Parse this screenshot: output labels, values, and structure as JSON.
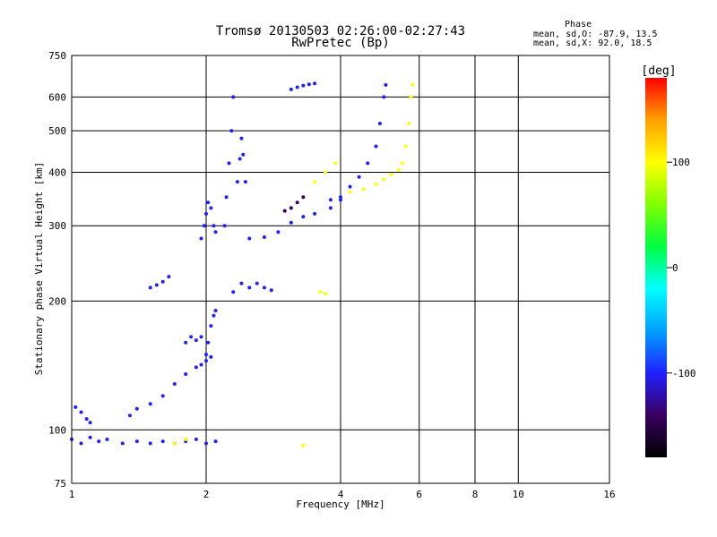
{
  "header": {
    "title_line1": "Tromsø 20130503 02:26:00-02:27:43",
    "title_line2": "RwPretec (Bp)"
  },
  "phase_box": {
    "title": "Phase",
    "o_stats": "mean, sd,O: -87.9, 13.5",
    "x_stats": "mean, sd,X:  92.0, 18.5"
  },
  "chart_data": {
    "type": "scatter",
    "xlabel": "Frequency [MHz]",
    "ylabel": "Stationary phase Virtual Height [km]",
    "x_scale": "log",
    "y_scale": "log",
    "xlim": [
      1,
      16
    ],
    "ylim": [
      75,
      750
    ],
    "x_ticks": [
      1,
      2,
      4,
      6,
      8,
      10,
      16
    ],
    "x_tick_labels": [
      "1",
      "2",
      "4",
      "6",
      "8",
      "10",
      "16"
    ],
    "y_ticks": [
      75,
      100,
      200,
      300,
      400,
      500,
      600,
      750
    ],
    "y_tick_labels": [
      "75",
      "100",
      "200",
      "300",
      "400",
      "500",
      "600",
      "750"
    ],
    "grid": true,
    "colorbar": {
      "label": "[deg]",
      "range": [
        -180,
        180
      ],
      "ticks": [
        100,
        0,
        -100
      ],
      "tick_labels": [
        "100",
        "0",
        "-100"
      ],
      "colors": [
        "#000000",
        "#3a0060",
        "#2020ff",
        "#00a0ff",
        "#00ffff",
        "#00ff40",
        "#80ff00",
        "#ffff00",
        "#ffa000",
        "#ff0000"
      ]
    },
    "traces": [
      {
        "points": [
          [
            1.0,
            95
          ],
          [
            1.05,
            93
          ],
          [
            1.1,
            96
          ],
          [
            1.15,
            94
          ],
          [
            1.2,
            95
          ],
          [
            1.3,
            93
          ],
          [
            1.4,
            94
          ],
          [
            1.5,
            93
          ],
          [
            1.6,
            94
          ],
          [
            1.7,
            93
          ],
          [
            1.8,
            94
          ],
          [
            1.9,
            95
          ],
          [
            2.0,
            93
          ],
          [
            2.1,
            94
          ]
        ],
        "phase": -110
      },
      {
        "points": [
          [
            1.02,
            113
          ],
          [
            1.05,
            110
          ],
          [
            1.08,
            106
          ],
          [
            1.1,
            104
          ]
        ],
        "phase": -105
      },
      {
        "points": [
          [
            1.35,
            108
          ],
          [
            1.4,
            112
          ],
          [
            1.5,
            115
          ],
          [
            1.6,
            120
          ],
          [
            1.7,
            128
          ],
          [
            1.8,
            135
          ],
          [
            1.9,
            140
          ],
          [
            1.95,
            142
          ],
          [
            2.0,
            145
          ],
          [
            2.05,
            148
          ]
        ],
        "phase": -110
      },
      {
        "points": [
          [
            1.8,
            160
          ],
          [
            1.85,
            165
          ],
          [
            1.9,
            162
          ],
          [
            1.95,
            165
          ]
        ],
        "phase": -110
      },
      {
        "points": [
          [
            2.0,
            150
          ],
          [
            2.02,
            160
          ],
          [
            2.05,
            175
          ],
          [
            2.08,
            185
          ],
          [
            2.1,
            190
          ]
        ],
        "phase": -115
      },
      {
        "points": [
          [
            1.5,
            215
          ],
          [
            1.55,
            218
          ],
          [
            1.6,
            222
          ],
          [
            1.65,
            228
          ]
        ],
        "phase": -105
      },
      {
        "points": [
          [
            1.95,
            280
          ],
          [
            1.98,
            300
          ],
          [
            2.0,
            320
          ],
          [
            2.02,
            340
          ],
          [
            2.05,
            330
          ],
          [
            2.08,
            300
          ],
          [
            2.1,
            290
          ]
        ],
        "phase": -110
      },
      {
        "points": [
          [
            2.2,
            300
          ],
          [
            2.22,
            350
          ],
          [
            2.25,
            420
          ],
          [
            2.28,
            500
          ],
          [
            2.3,
            600
          ]
        ],
        "phase": -110
      },
      {
        "points": [
          [
            2.35,
            380
          ],
          [
            2.38,
            430
          ],
          [
            2.4,
            480
          ],
          [
            2.42,
            440
          ],
          [
            2.45,
            380
          ]
        ],
        "phase": -110
      },
      {
        "points": [
          [
            2.3,
            210
          ],
          [
            2.4,
            220
          ],
          [
            2.5,
            215
          ],
          [
            2.6,
            220
          ],
          [
            2.7,
            215
          ],
          [
            2.8,
            212
          ]
        ],
        "phase": -110
      },
      {
        "points": [
          [
            2.5,
            280
          ],
          [
            2.7,
            282
          ],
          [
            2.9,
            290
          ],
          [
            3.1,
            305
          ],
          [
            3.3,
            315
          ],
          [
            3.5,
            320
          ],
          [
            3.8,
            330
          ],
          [
            4.0,
            345
          ]
        ],
        "phase": -112
      },
      {
        "points": [
          [
            3.0,
            325
          ],
          [
            3.1,
            330
          ],
          [
            3.2,
            340
          ],
          [
            3.3,
            350
          ]
        ],
        "phase": -125
      },
      {
        "points": [
          [
            3.1,
            625
          ],
          [
            3.2,
            632
          ],
          [
            3.3,
            638
          ],
          [
            3.4,
            642
          ],
          [
            3.5,
            645
          ]
        ],
        "phase": -120
      },
      {
        "points": [
          [
            3.8,
            345
          ],
          [
            4.0,
            350
          ],
          [
            4.2,
            370
          ],
          [
            4.4,
            390
          ],
          [
            4.6,
            420
          ],
          [
            4.8,
            460
          ],
          [
            4.9,
            520
          ],
          [
            5.0,
            600
          ],
          [
            5.05,
            640
          ]
        ],
        "phase": -105
      },
      {
        "points": [
          [
            3.5,
            380
          ],
          [
            3.7,
            400
          ],
          [
            3.9,
            420
          ]
        ],
        "phase": 100
      },
      {
        "points": [
          [
            4.2,
            360
          ],
          [
            4.5,
            365
          ],
          [
            4.8,
            375
          ],
          [
            5.0,
            385
          ],
          [
            5.2,
            395
          ],
          [
            5.4,
            405
          ],
          [
            5.5,
            420
          ],
          [
            5.6,
            460
          ],
          [
            5.7,
            520
          ],
          [
            5.75,
            600
          ],
          [
            5.8,
            640
          ]
        ],
        "phase": 100
      },
      {
        "points": [
          [
            3.6,
            210
          ],
          [
            3.7,
            208
          ]
        ],
        "phase": 100
      },
      {
        "points": [
          [
            1.7,
            93
          ],
          [
            1.8,
            95
          ],
          [
            3.3,
            92
          ]
        ],
        "phase": 90
      }
    ]
  }
}
